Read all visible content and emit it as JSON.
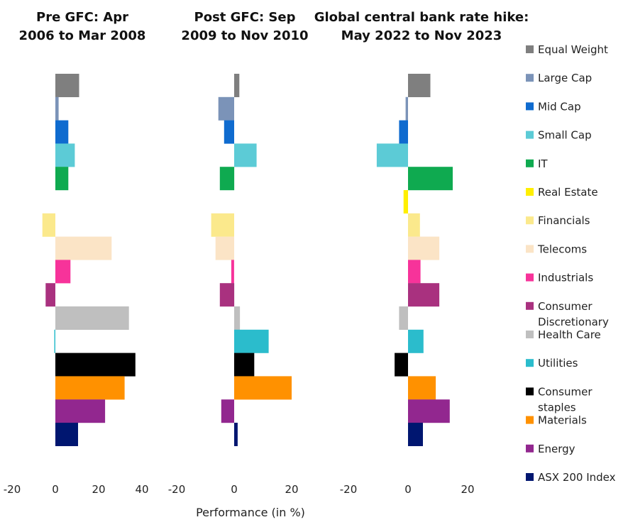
{
  "chart_data": {
    "type": "bar",
    "orientation": "horizontal",
    "xlabel": "Performance (in %)",
    "categories": [
      "Equal Weight",
      "Large Cap",
      "Mid Cap",
      "Small Cap",
      "IT",
      "Real Estate",
      "Financials",
      "Telecoms",
      "Industrials",
      "Consumer Discretionary",
      "Health Care",
      "Utilities",
      "Consumer staples",
      "Materials",
      "Energy",
      "ASX 200 Index"
    ],
    "legend": [
      {
        "name": "Equal Weight",
        "lines": [
          "Equal Weight"
        ],
        "color": "#7f7f7f"
      },
      {
        "name": "Large Cap",
        "lines": [
          "Large Cap"
        ],
        "color": "#7b93b8"
      },
      {
        "name": "Mid Cap",
        "lines": [
          "Mid Cap"
        ],
        "color": "#0f6bcf"
      },
      {
        "name": "Small Cap",
        "lines": [
          "Small Cap"
        ],
        "color": "#5ccbd6"
      },
      {
        "name": "IT",
        "lines": [
          "IT"
        ],
        "color": "#0faa50"
      },
      {
        "name": "Real Estate",
        "lines": [
          "Real Estate"
        ],
        "color": "#ffef00"
      },
      {
        "name": "Financials",
        "lines": [
          "Financials"
        ],
        "color": "#fbe98c"
      },
      {
        "name": "Telecoms",
        "lines": [
          "Telecoms"
        ],
        "color": "#fbe4c6"
      },
      {
        "name": "Industrials",
        "lines": [
          "Industrials"
        ],
        "color": "#f7339a"
      },
      {
        "name": "Consumer Discretionary",
        "lines": [
          "Consumer",
          "Discretionary"
        ],
        "color": "#a9317f"
      },
      {
        "name": "Health Care",
        "lines": [
          "Health Care"
        ],
        "color": "#bfbfbf"
      },
      {
        "name": "Utilities",
        "lines": [
          "Utilities"
        ],
        "color": "#2bbccc"
      },
      {
        "name": "Consumer staples",
        "lines": [
          "Consumer",
          "staples"
        ],
        "color": "#000000"
      },
      {
        "name": "Materials",
        "lines": [
          "Materials"
        ],
        "color": "#ff9100"
      },
      {
        "name": "Energy",
        "lines": [
          "Energy"
        ],
        "color": "#92278f"
      },
      {
        "name": "ASX 200 Index",
        "lines": [
          "ASX 200 Index"
        ],
        "color": "#001670"
      }
    ],
    "panels": [
      {
        "title_lines": [
          "Pre GFC: Apr",
          "2006 to Mar 2008"
        ],
        "xlim": [
          -20,
          45
        ],
        "ticks": [
          -20,
          0,
          20,
          40
        ],
        "tick_labels": [
          "-20",
          "0",
          "20",
          "40"
        ],
        "values": [
          11,
          1.5,
          6,
          9,
          6,
          0,
          -6,
          26,
          7,
          -4.5,
          34,
          -0.5,
          37,
          32,
          23,
          10.5
        ]
      },
      {
        "title_lines": [
          "Post GFC: Sep",
          "2009 to Nov 2010"
        ],
        "xlim": [
          -20,
          23
        ],
        "ticks": [
          -20,
          0,
          20
        ],
        "tick_labels": [
          "-20",
          "0",
          "20"
        ],
        "values": [
          1.8,
          -5.5,
          -3.5,
          7.8,
          -5,
          0,
          -8,
          -6.5,
          -1,
          -5,
          2,
          12,
          7,
          20,
          -4.5,
          1.2
        ]
      },
      {
        "title_lines": [
          "Global central bank rate hike:",
          "May 2022 to Nov 2023"
        ],
        "xlim": [
          -20,
          23
        ],
        "ticks": [
          -20,
          0,
          20
        ],
        "tick_labels": [
          "-20",
          "0",
          "20"
        ],
        "values": [
          7.5,
          -0.8,
          -3,
          -10.5,
          15,
          -1.5,
          4,
          10.5,
          4.2,
          10.5,
          -3,
          5.2,
          -4.5,
          9.3,
          14,
          5
        ]
      }
    ]
  }
}
